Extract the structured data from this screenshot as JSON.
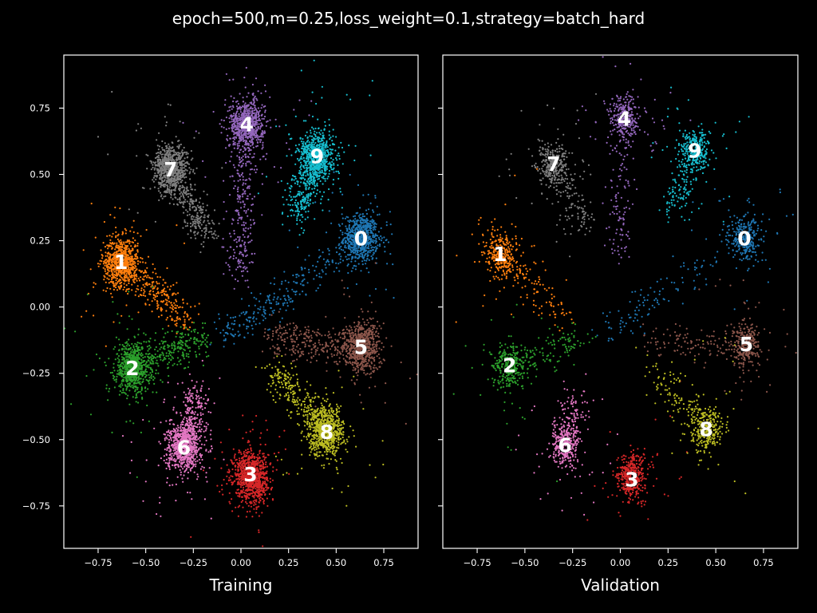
{
  "chart_data": {
    "type": "scatter",
    "title": "epoch=500,m=0.25,loss_weight=0.1,strategy=batch_hard",
    "x_ticks": [
      "−0.75",
      "−0.50",
      "−0.25",
      "0.00",
      "0.25",
      "0.50",
      "0.75"
    ],
    "y_ticks": [
      "−0.75",
      "−0.50",
      "−0.25",
      "0.00",
      "0.25",
      "0.50",
      "0.75"
    ],
    "xlim": [
      -0.93,
      0.93
    ],
    "ylim": [
      -0.91,
      0.95
    ],
    "grid": false,
    "legend": "none (cluster labels drawn at cluster centers)",
    "colors": {
      "0": "#1f77b4",
      "1": "#ff7f0e",
      "2": "#2ca02c",
      "3": "#d62728",
      "4": "#9467bd",
      "5": "#8c564b",
      "6": "#e377c2",
      "7": "#7f7f7f",
      "8": "#bcbd22",
      "9": "#17becf"
    },
    "panels": [
      {
        "xlabel": "Training",
        "clusters": [
          {
            "label": "0",
            "center": [
              0.63,
              0.26
            ],
            "tail": [
              -0.1,
              -0.12
            ]
          },
          {
            "label": "1",
            "center": [
              -0.63,
              0.17
            ],
            "tail": [
              -0.28,
              -0.04
            ]
          },
          {
            "label": "2",
            "center": [
              -0.57,
              -0.23
            ],
            "tail": [
              -0.2,
              -0.12
            ]
          },
          {
            "label": "3",
            "center": [
              0.05,
              -0.63
            ],
            "tail": [
              0.08,
              -0.7
            ]
          },
          {
            "label": "4",
            "center": [
              0.03,
              0.69
            ],
            "tail": [
              -0.01,
              0.12
            ]
          },
          {
            "label": "5",
            "center": [
              0.63,
              -0.15
            ],
            "tail": [
              0.15,
              -0.12
            ]
          },
          {
            "label": "6",
            "center": [
              -0.3,
              -0.53
            ],
            "tail": [
              -0.23,
              -0.34
            ]
          },
          {
            "label": "7",
            "center": [
              -0.37,
              0.52
            ],
            "tail": [
              -0.18,
              0.28
            ]
          },
          {
            "label": "8",
            "center": [
              0.45,
              -0.47
            ],
            "tail": [
              0.17,
              -0.24
            ]
          },
          {
            "label": "9",
            "center": [
              0.4,
              0.57
            ],
            "tail": [
              0.28,
              0.34
            ]
          }
        ]
      },
      {
        "xlabel": "Validation",
        "clusters": [
          {
            "label": "0",
            "center": [
              0.65,
              0.26
            ],
            "tail": [
              -0.08,
              -0.1
            ]
          },
          {
            "label": "1",
            "center": [
              -0.63,
              0.2
            ],
            "tail": [
              -0.3,
              -0.04
            ]
          },
          {
            "label": "2",
            "center": [
              -0.58,
              -0.22
            ],
            "tail": [
              -0.2,
              -0.12
            ]
          },
          {
            "label": "3",
            "center": [
              0.06,
              -0.65
            ],
            "tail": [
              0.05,
              -0.58
            ]
          },
          {
            "label": "4",
            "center": [
              0.02,
              0.71
            ],
            "tail": [
              0.0,
              0.2
            ]
          },
          {
            "label": "5",
            "center": [
              0.66,
              -0.14
            ],
            "tail": [
              0.15,
              -0.12
            ]
          },
          {
            "label": "6",
            "center": [
              -0.29,
              -0.52
            ],
            "tail": [
              -0.23,
              -0.35
            ]
          },
          {
            "label": "7",
            "center": [
              -0.35,
              0.54
            ],
            "tail": [
              -0.18,
              0.3
            ]
          },
          {
            "label": "8",
            "center": [
              0.45,
              -0.46
            ],
            "tail": [
              0.17,
              -0.24
            ]
          },
          {
            "label": "9",
            "center": [
              0.39,
              0.59
            ],
            "tail": [
              0.28,
              0.36
            ]
          }
        ]
      }
    ]
  }
}
